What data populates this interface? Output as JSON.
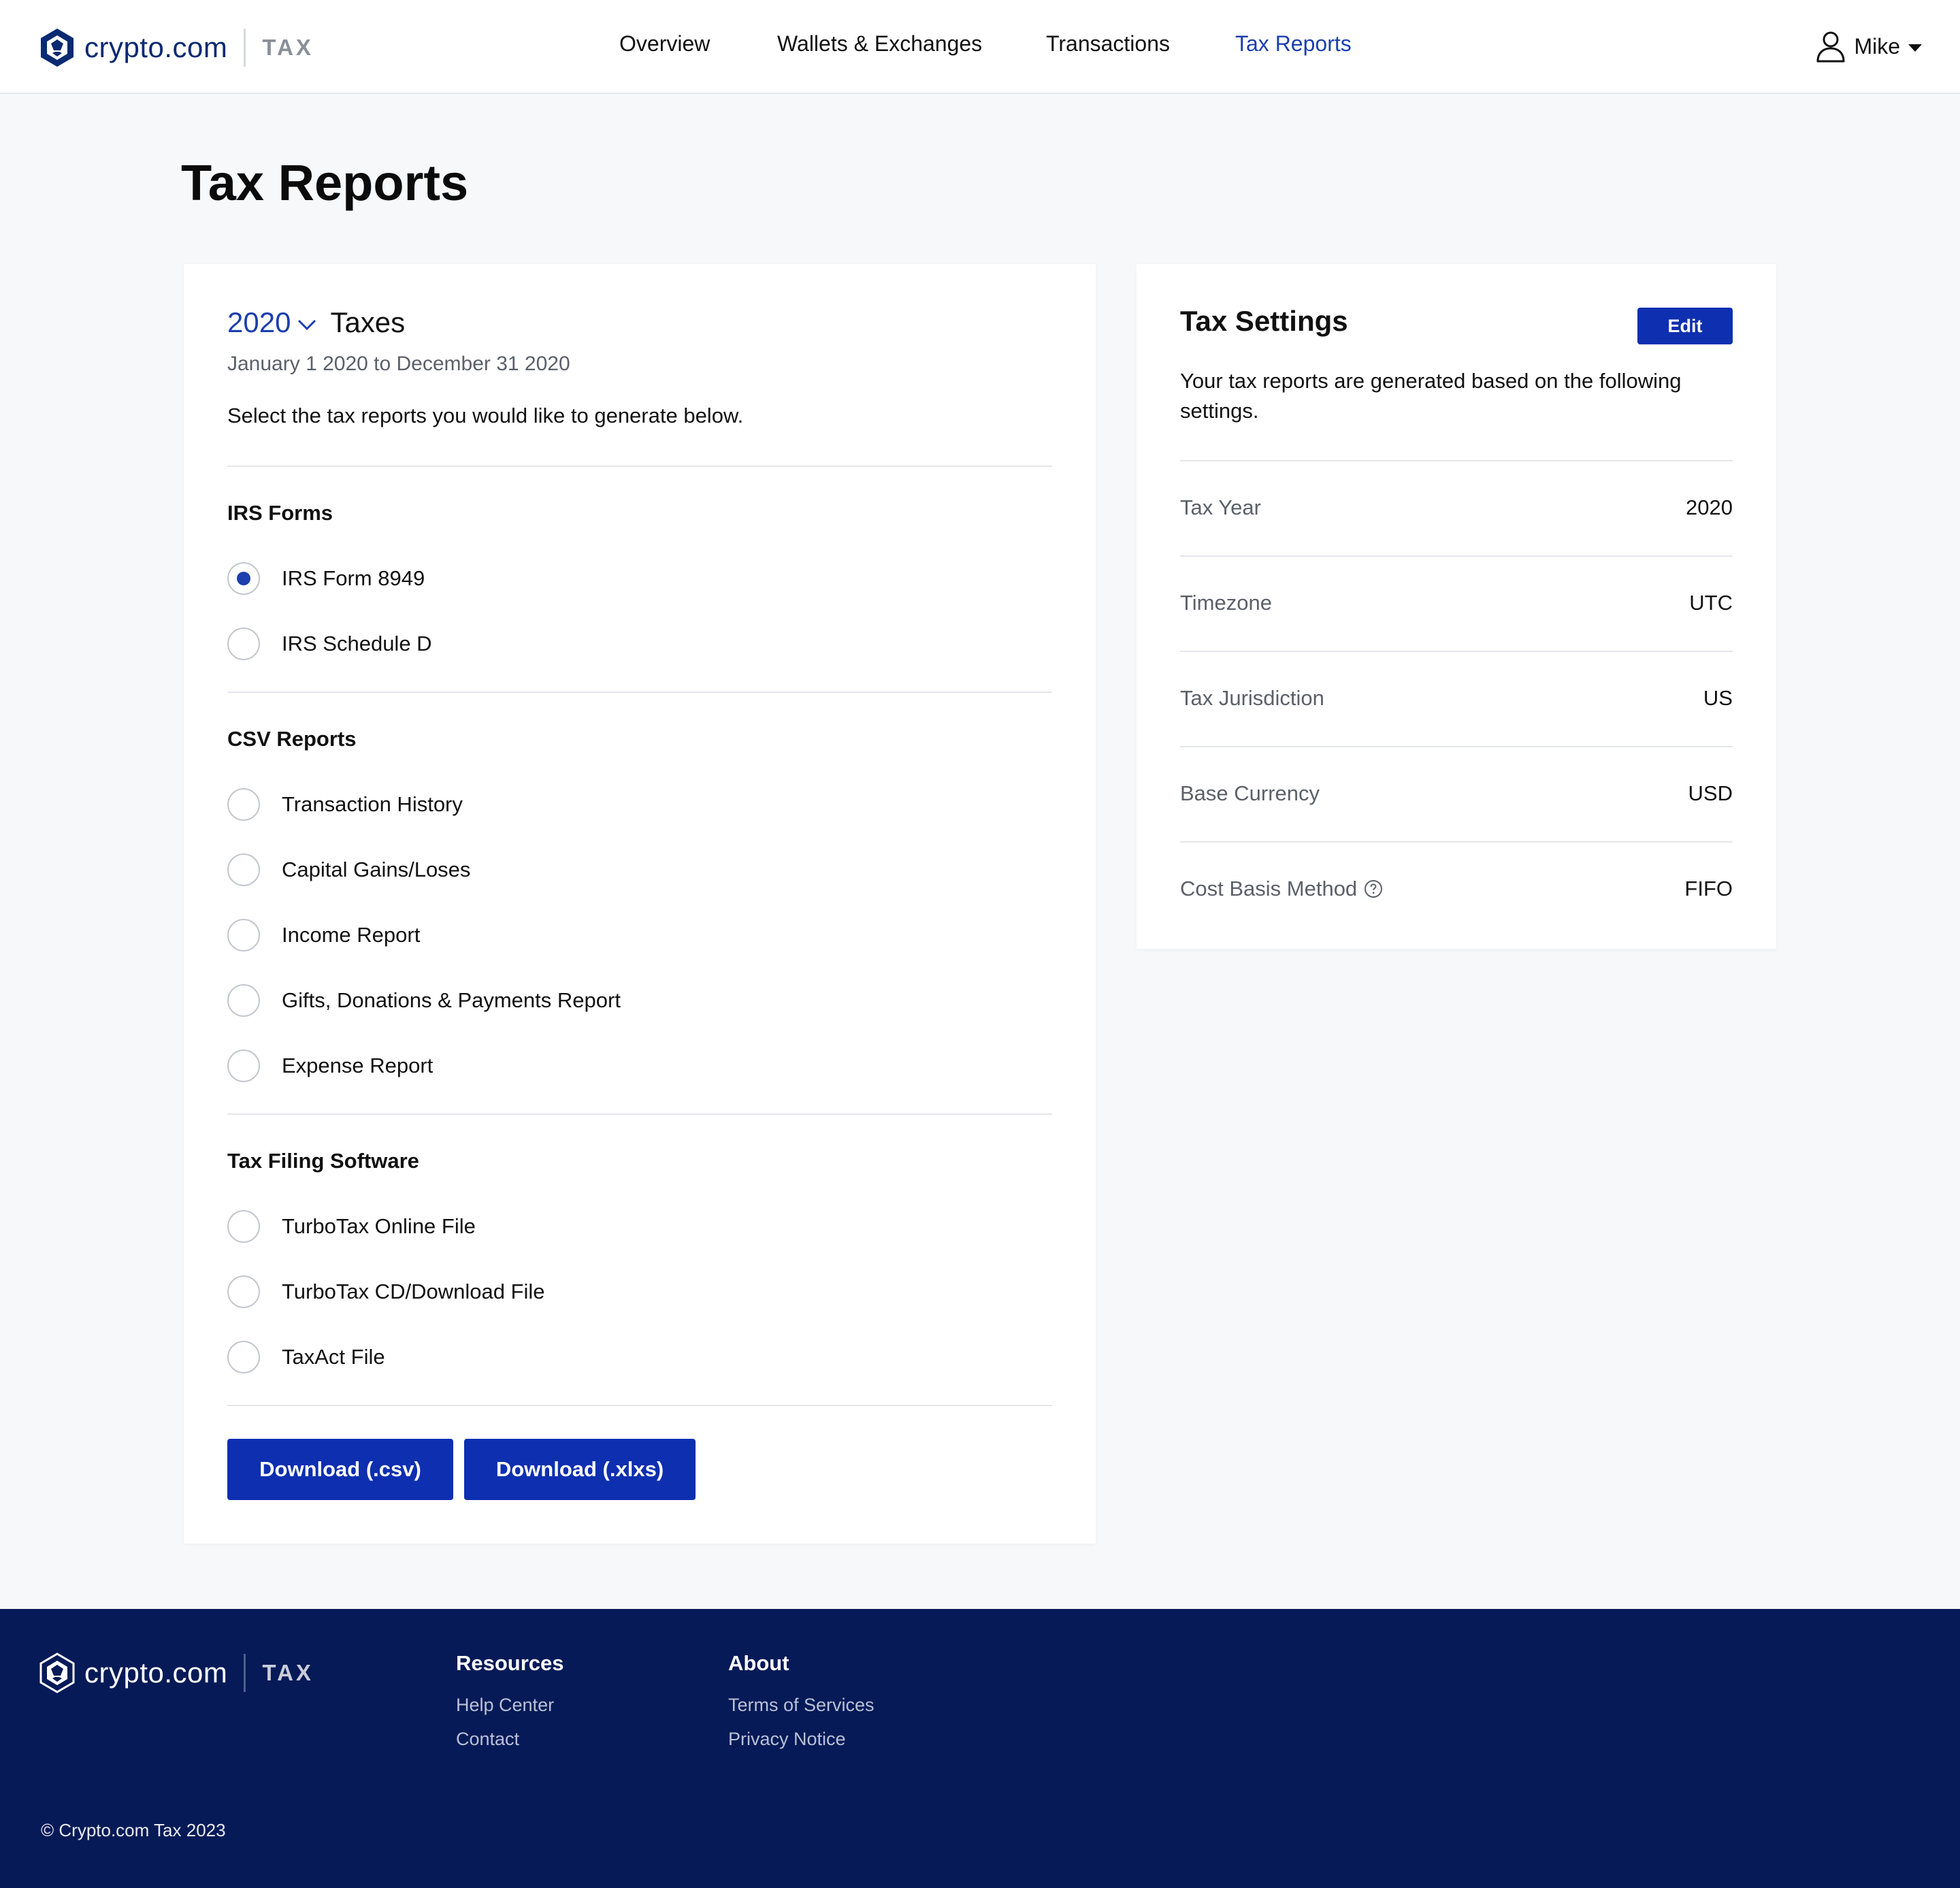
{
  "brand": {
    "name": "crypto.com",
    "product": "TAX"
  },
  "nav": {
    "items": [
      {
        "label": "Overview",
        "active": false
      },
      {
        "label": "Wallets & Exchanges",
        "active": false
      },
      {
        "label": "Transactions",
        "active": false
      },
      {
        "label": "Tax Reports",
        "active": true
      }
    ]
  },
  "user": {
    "name": "Mike",
    "icon": "user-icon"
  },
  "page": {
    "title": "Tax Reports"
  },
  "reports": {
    "year": "2020",
    "year_suffix": "Taxes",
    "date_range": "January 1 2020 to December 31 2020",
    "intro": "Select the tax reports you would like to generate below.",
    "sections": [
      {
        "title": "IRS Forms",
        "options": [
          {
            "label": "IRS Form 8949",
            "selected": true
          },
          {
            "label": "IRS Schedule D",
            "selected": false
          }
        ]
      },
      {
        "title": "CSV Reports",
        "options": [
          {
            "label": "Transaction History",
            "selected": false
          },
          {
            "label": "Capital Gains/Loses",
            "selected": false
          },
          {
            "label": "Income Report",
            "selected": false
          },
          {
            "label": "Gifts, Donations & Payments Report",
            "selected": false
          },
          {
            "label": "Expense Report",
            "selected": false
          }
        ]
      },
      {
        "title": "Tax Filing Software",
        "options": [
          {
            "label": "TurboTax Online File",
            "selected": false
          },
          {
            "label": "TurboTax CD/Download File",
            "selected": false
          },
          {
            "label": "TaxAct File",
            "selected": false
          }
        ]
      }
    ],
    "buttons": {
      "csv": "Download (.csv)",
      "xlsx": "Download (.xlxs)"
    }
  },
  "settings": {
    "title": "Tax Settings",
    "edit_label": "Edit",
    "description": "Your tax reports are generated based on the following settings.",
    "rows": [
      {
        "key": "Tax Year",
        "value": "2020"
      },
      {
        "key": "Timezone",
        "value": "UTC"
      },
      {
        "key": "Tax Jurisdiction",
        "value": "US"
      },
      {
        "key": "Base Currency",
        "value": "USD"
      },
      {
        "key": "Cost Basis Method",
        "value": "FIFO",
        "help_icon": "help-circle-icon"
      }
    ]
  },
  "footer": {
    "columns": [
      {
        "title": "Resources",
        "links": [
          "Help Center",
          "Contact"
        ]
      },
      {
        "title": "About",
        "links": [
          "Terms of Services",
          "Privacy Notice"
        ]
      }
    ],
    "copyright": "© Crypto.com Tax 2023"
  },
  "colors": {
    "accent": "#1c3fae",
    "button": "#0d2fb0",
    "footer_bg": "#061a57",
    "page_bg": "#f7f8fa"
  }
}
